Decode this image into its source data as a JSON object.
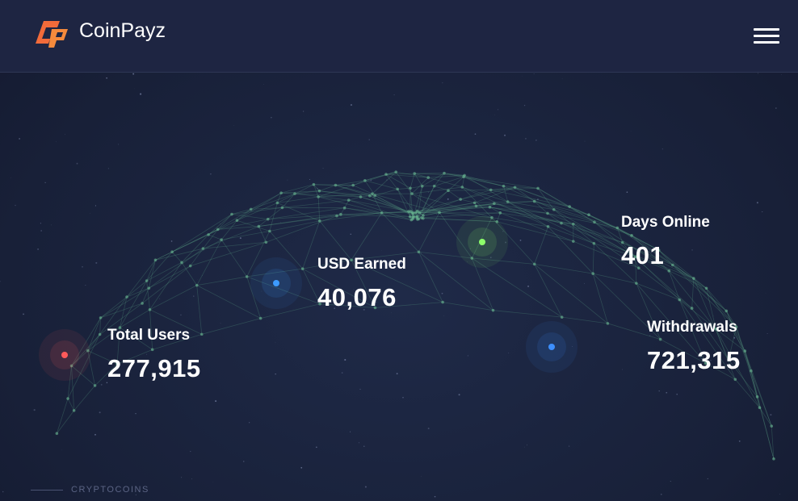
{
  "header": {
    "brand": "CoinPayz"
  },
  "stats": [
    {
      "label": "Total Users",
      "value": "277,915"
    },
    {
      "label": "USD Earned",
      "value": "40,076"
    },
    {
      "label": "Days Online",
      "value": "401"
    },
    {
      "label": "Withdrawals",
      "value": "721,315"
    }
  ],
  "footer": {
    "section": "CRYPTOCOINS"
  }
}
